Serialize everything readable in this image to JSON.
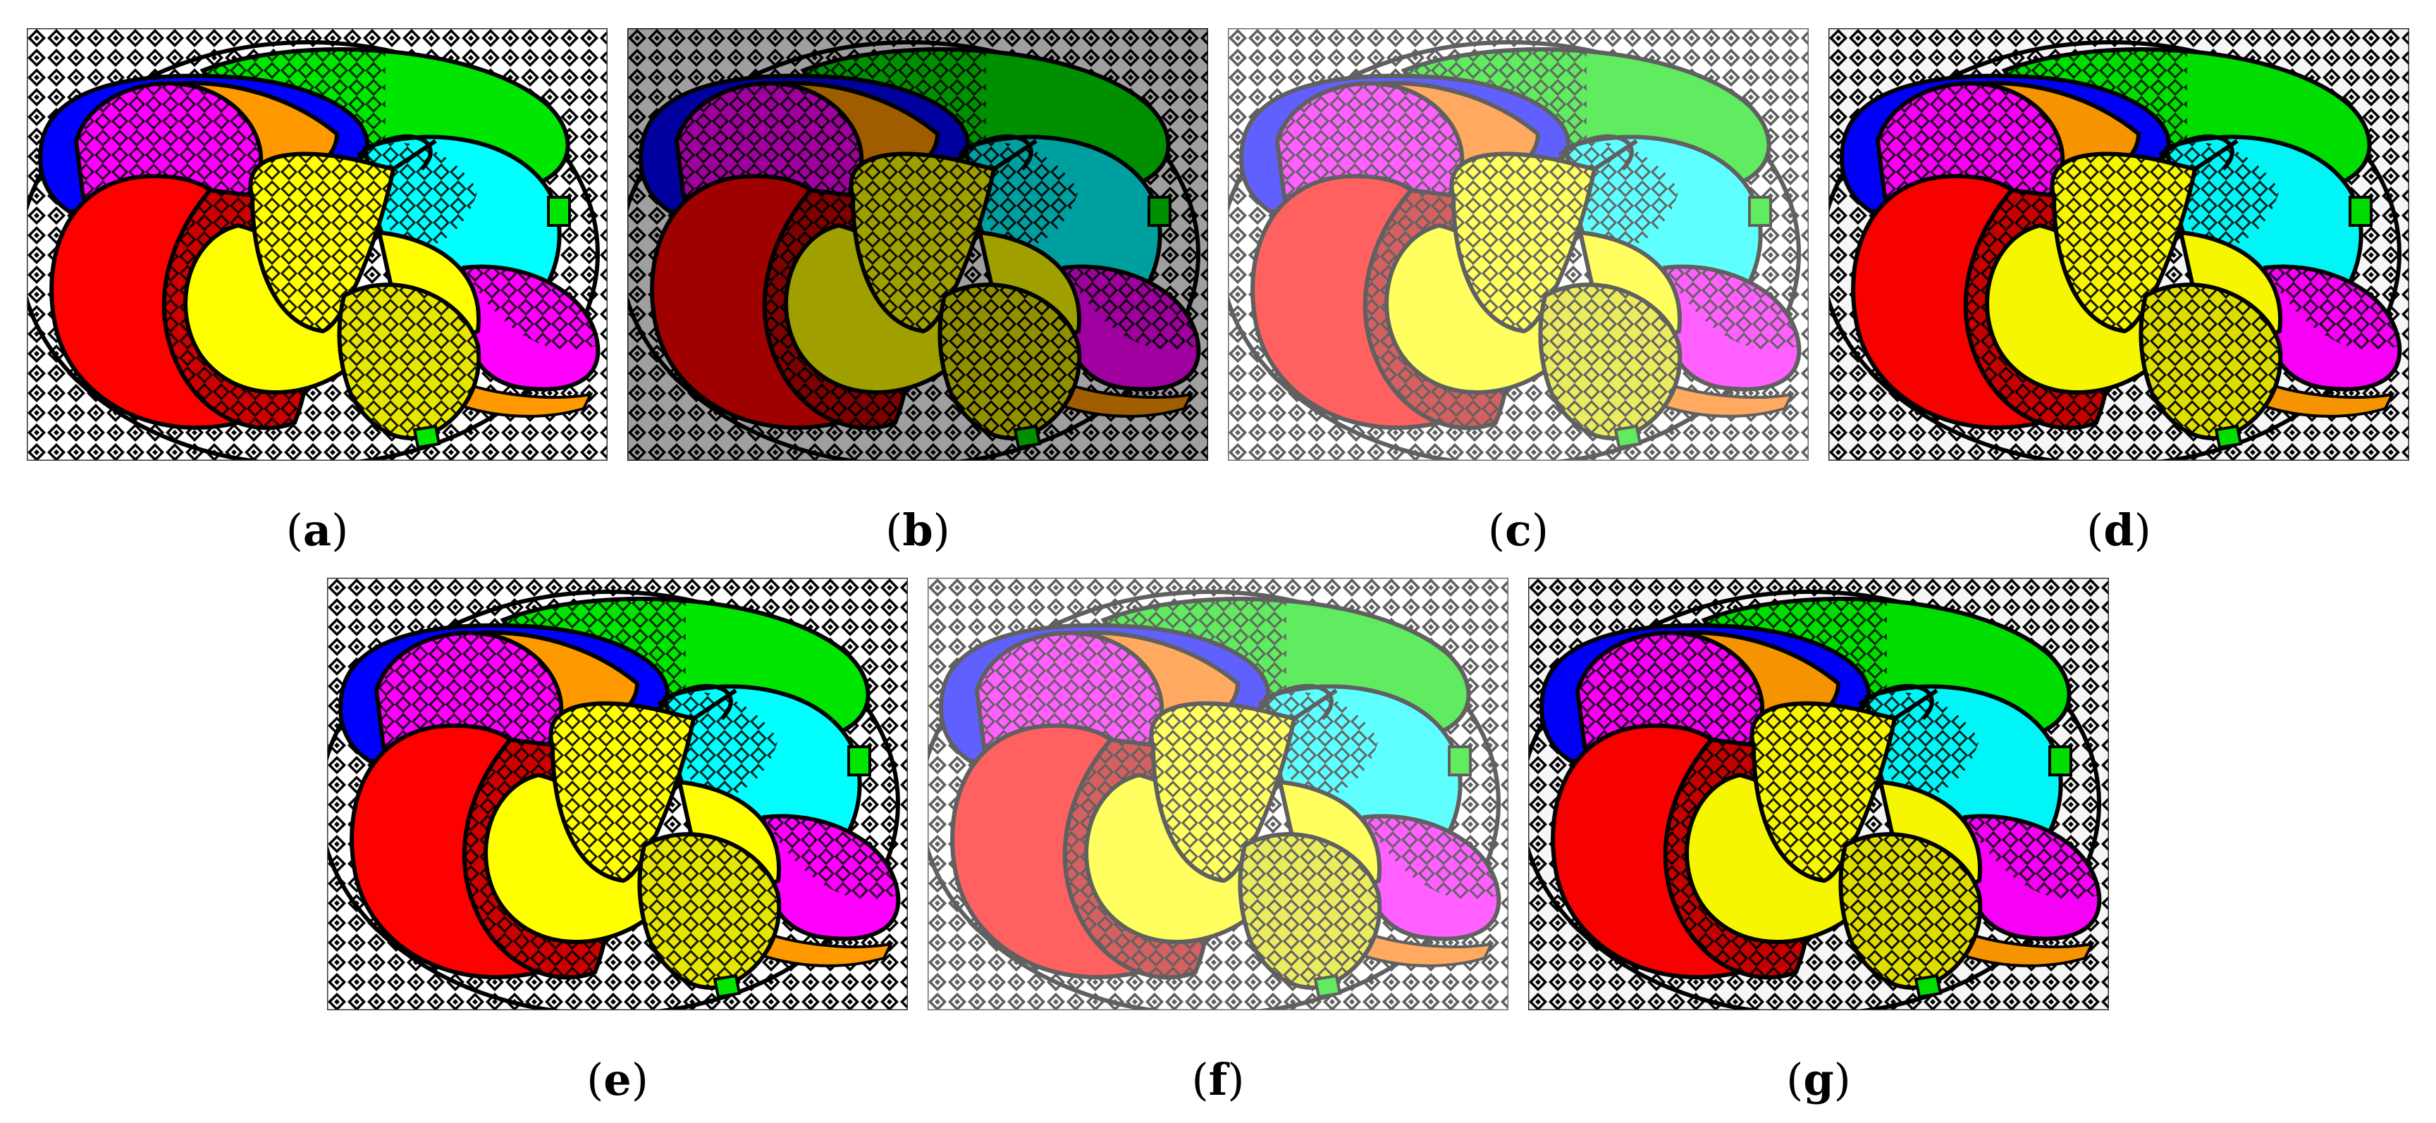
{
  "figure": {
    "panels": [
      {
        "id": "a",
        "label_open": "(",
        "label_letter": "a",
        "label_close": ")",
        "variant": "original"
      },
      {
        "id": "b",
        "label_open": "(",
        "label_letter": "b",
        "label_close": ")",
        "variant": "dark"
      },
      {
        "id": "c",
        "label_open": "(",
        "label_letter": "c",
        "label_close": ")",
        "variant": "bright"
      },
      {
        "id": "d",
        "label_open": "(",
        "label_letter": "d",
        "label_close": ")",
        "variant": "enhanced"
      },
      {
        "id": "e",
        "label_open": "(",
        "label_letter": "e",
        "label_close": ")",
        "variant": "original"
      },
      {
        "id": "f",
        "label_open": "(",
        "label_letter": "f",
        "label_close": ")",
        "variant": "bright"
      },
      {
        "id": "g",
        "label_open": "(",
        "label_letter": "g",
        "label_close": ")",
        "variant": "enhanced"
      }
    ],
    "shape_colors": {
      "red": "#ff0000",
      "yellow": "#ffff00",
      "green": "#00e600",
      "blue": "#0000ff",
      "magenta": "#ff00ff",
      "cyan": "#00ffff",
      "orange": "#ff9900",
      "outline": "#000000",
      "background_pattern": "#000000"
    }
  }
}
